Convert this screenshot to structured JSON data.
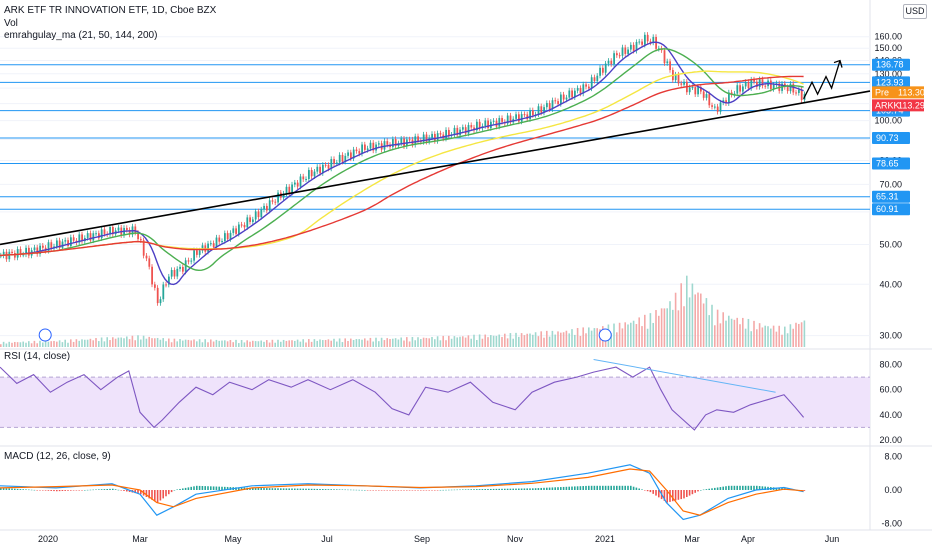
{
  "header": {
    "title": "ARK ETF TR INNOVATION ETF, 1D, Cboe BZX",
    "vol_label": "Vol",
    "ma_label": "emrahgulay_ma (21, 50, 144, 200)",
    "currency": "USD"
  },
  "rsi_panel": {
    "label": "RSI (14, close)"
  },
  "macd_panel": {
    "label": "MACD (12, 26, close, 9)"
  },
  "chart_data": {
    "type": "line",
    "price_axis": {
      "ticks": [
        160,
        150,
        140,
        130,
        120,
        110,
        100,
        90,
        80,
        70,
        60,
        50,
        40,
        30
      ]
    },
    "rsi_axis": {
      "ticks": [
        80,
        60,
        40,
        20
      ],
      "labels": [
        "80.00",
        "60.00",
        "40.00",
        "20.00"
      ]
    },
    "macd_axis": {
      "ticks": [
        8,
        0,
        -8
      ],
      "labels": [
        "8.00",
        "0.00",
        "-8.00"
      ]
    },
    "x_labels": [
      "2020",
      "Mar",
      "May",
      "Jul",
      "Sep",
      "Nov",
      "2021",
      "Mar",
      "Apr",
      "Jun"
    ],
    "horizontal_levels": [
      {
        "value": 136.78,
        "label": "136.78"
      },
      {
        "value": 123.93,
        "label": "123.93"
      },
      {
        "value": 105.74,
        "label": "105.74"
      },
      {
        "value": 90.73,
        "label": "90.73"
      },
      {
        "value": 78.65,
        "label": "78.65"
      },
      {
        "value": 65.31,
        "label": "65.31"
      },
      {
        "value": 60.91,
        "label": "60.91"
      }
    ],
    "price_tags": [
      {
        "prefix": "Pre",
        "label": "113.30",
        "color": "#f7931a"
      },
      {
        "prefix": "ARKK",
        "label": "113.29",
        "color": "#f23645"
      }
    ],
    "price_series": [
      [
        0,
        47
      ],
      [
        10,
        48
      ],
      [
        20,
        50
      ],
      [
        30,
        52
      ],
      [
        40,
        54
      ],
      [
        48,
        54
      ],
      [
        52,
        46
      ],
      [
        56,
        36
      ],
      [
        60,
        42
      ],
      [
        65,
        44
      ],
      [
        70,
        48
      ],
      [
        80,
        52
      ],
      [
        90,
        58
      ],
      [
        100,
        66
      ],
      [
        110,
        74
      ],
      [
        120,
        80
      ],
      [
        130,
        86
      ],
      [
        140,
        88
      ],
      [
        150,
        90
      ],
      [
        160,
        93
      ],
      [
        170,
        97
      ],
      [
        180,
        100
      ],
      [
        190,
        104
      ],
      [
        200,
        113
      ],
      [
        210,
        122
      ],
      [
        215,
        134
      ],
      [
        220,
        145
      ],
      [
        225,
        150
      ],
      [
        230,
        158
      ],
      [
        233,
        156
      ],
      [
        236,
        146
      ],
      [
        240,
        128
      ],
      [
        245,
        120
      ],
      [
        250,
        118
      ],
      [
        255,
        106
      ],
      [
        262,
        118
      ],
      [
        268,
        124
      ],
      [
        275,
        122
      ],
      [
        282,
        120
      ],
      [
        286,
        115
      ]
    ],
    "ma_series": [
      {
        "period": "21",
        "color": "#4c3fc4"
      },
      {
        "period": "50",
        "color": "#4caf50"
      },
      {
        "period": "144",
        "color": "#f5e642"
      },
      {
        "period": "200",
        "color": "#e53935"
      }
    ],
    "volume_series": [
      [
        0,
        6
      ],
      [
        20,
        8
      ],
      [
        50,
        14
      ],
      [
        60,
        10
      ],
      [
        90,
        8
      ],
      [
        120,
        10
      ],
      [
        150,
        12
      ],
      [
        180,
        16
      ],
      [
        200,
        20
      ],
      [
        210,
        24
      ],
      [
        220,
        28
      ],
      [
        232,
        40
      ],
      [
        240,
        60
      ],
      [
        245,
        85
      ],
      [
        250,
        70
      ],
      [
        255,
        45
      ],
      [
        260,
        40
      ],
      [
        270,
        30
      ],
      [
        280,
        24
      ],
      [
        286,
        34
      ]
    ],
    "rsi_series": [
      [
        0,
        78
      ],
      [
        6,
        65
      ],
      [
        12,
        72
      ],
      [
        18,
        58
      ],
      [
        24,
        66
      ],
      [
        30,
        72
      ],
      [
        36,
        60
      ],
      [
        42,
        70
      ],
      [
        46,
        75
      ],
      [
        50,
        42
      ],
      [
        55,
        30
      ],
      [
        58,
        36
      ],
      [
        64,
        50
      ],
      [
        70,
        62
      ],
      [
        76,
        56
      ],
      [
        82,
        66
      ],
      [
        90,
        60
      ],
      [
        96,
        68
      ],
      [
        104,
        62
      ],
      [
        110,
        68
      ],
      [
        118,
        60
      ],
      [
        126,
        68
      ],
      [
        134,
        58
      ],
      [
        140,
        45
      ],
      [
        146,
        40
      ],
      [
        152,
        62
      ],
      [
        160,
        58
      ],
      [
        168,
        66
      ],
      [
        176,
        50
      ],
      [
        184,
        44
      ],
      [
        190,
        58
      ],
      [
        198,
        66
      ],
      [
        206,
        70
      ],
      [
        212,
        74
      ],
      [
        220,
        78
      ],
      [
        226,
        70
      ],
      [
        232,
        78
      ],
      [
        236,
        60
      ],
      [
        240,
        44
      ],
      [
        244,
        36
      ],
      [
        248,
        28
      ],
      [
        252,
        40
      ],
      [
        256,
        44
      ],
      [
        262,
        42
      ],
      [
        268,
        48
      ],
      [
        274,
        52
      ],
      [
        280,
        56
      ],
      [
        284,
        46
      ],
      [
        287,
        38
      ]
    ],
    "macd_series": [
      [
        0,
        1
      ],
      [
        20,
        0.5
      ],
      [
        40,
        1.5
      ],
      [
        50,
        -1
      ],
      [
        56,
        -6
      ],
      [
        62,
        -4
      ],
      [
        70,
        -1
      ],
      [
        90,
        1
      ],
      [
        110,
        1.5
      ],
      [
        130,
        1
      ],
      [
        150,
        0.5
      ],
      [
        170,
        1
      ],
      [
        190,
        2
      ],
      [
        210,
        4
      ],
      [
        225,
        6
      ],
      [
        232,
        4
      ],
      [
        238,
        -3
      ],
      [
        244,
        -7
      ],
      [
        250,
        -6
      ],
      [
        260,
        -2
      ],
      [
        270,
        0
      ],
      [
        280,
        0.6
      ],
      [
        287,
        -0.4
      ]
    ],
    "signal_series": [
      [
        0,
        0.5
      ],
      [
        20,
        0.8
      ],
      [
        40,
        1.2
      ],
      [
        50,
        0
      ],
      [
        56,
        -3
      ],
      [
        62,
        -4
      ],
      [
        70,
        -2
      ],
      [
        90,
        0.5
      ],
      [
        110,
        1.2
      ],
      [
        130,
        1
      ],
      [
        150,
        0.6
      ],
      [
        170,
        0.8
      ],
      [
        190,
        1.6
      ],
      [
        210,
        3
      ],
      [
        225,
        5
      ],
      [
        232,
        4.5
      ],
      [
        238,
        0
      ],
      [
        244,
        -5
      ],
      [
        250,
        -6
      ],
      [
        260,
        -3
      ],
      [
        270,
        -1
      ],
      [
        280,
        0.2
      ],
      [
        287,
        -0.2
      ]
    ]
  }
}
